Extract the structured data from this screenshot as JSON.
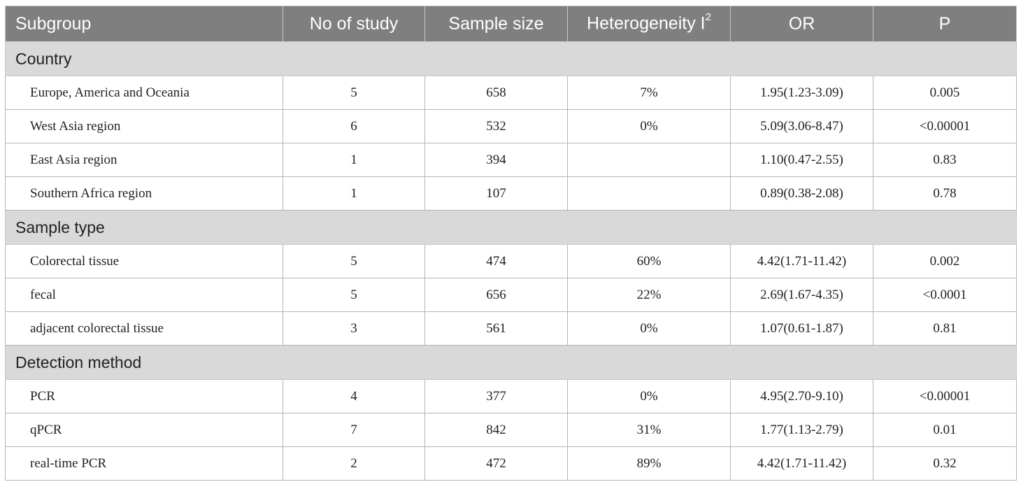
{
  "header": {
    "subgroup": "Subgroup",
    "no_of_study": "No of study",
    "sample_size": "Sample size",
    "heterogeneity": "Heterogeneity I",
    "heterogeneity_sup": "2",
    "or": "OR",
    "p": "P"
  },
  "groups": [
    {
      "name": "Country",
      "rows": [
        {
          "label": "Europe, America and Oceania",
          "studies": "5",
          "sample": "658",
          "het": "7%",
          "or": "1.95(1.23-3.09)",
          "p": "0.005"
        },
        {
          "label": "West Asia region",
          "studies": "6",
          "sample": "532",
          "het": "0%",
          "or": "5.09(3.06-8.47)",
          "p": "<0.00001"
        },
        {
          "label": "East Asia region",
          "studies": "1",
          "sample": "394",
          "het": "",
          "or": "1.10(0.47-2.55)",
          "p": "0.83"
        },
        {
          "label": "Southern Africa region",
          "studies": "1",
          "sample": "107",
          "het": "",
          "or": "0.89(0.38-2.08)",
          "p": "0.78"
        }
      ]
    },
    {
      "name": "Sample type",
      "rows": [
        {
          "label": "Colorectal tissue",
          "studies": "5",
          "sample": "474",
          "het": "60%",
          "or": "4.42(1.71-11.42)",
          "p": "0.002"
        },
        {
          "label": "fecal",
          "studies": "5",
          "sample": "656",
          "het": "22%",
          "or": "2.69(1.67-4.35)",
          "p": "<0.0001"
        },
        {
          "label": "adjacent colorectal tissue",
          "studies": "3",
          "sample": "561",
          "het": "0%",
          "or": "1.07(0.61-1.87)",
          "p": "0.81"
        }
      ]
    },
    {
      "name": "Detection method",
      "rows": [
        {
          "label": "PCR",
          "studies": "4",
          "sample": "377",
          "het": "0%",
          "or": "4.95(2.70-9.10)",
          "p": "<0.00001"
        },
        {
          "label": "qPCR",
          "studies": "7",
          "sample": "842",
          "het": "31%",
          "or": "1.77(1.13-2.79)",
          "p": "0.01"
        },
        {
          "label": "real-time PCR",
          "studies": "2",
          "sample": "472",
          "het": "89%",
          "or": "4.42(1.71-11.42)",
          "p": "0.32"
        }
      ]
    }
  ]
}
